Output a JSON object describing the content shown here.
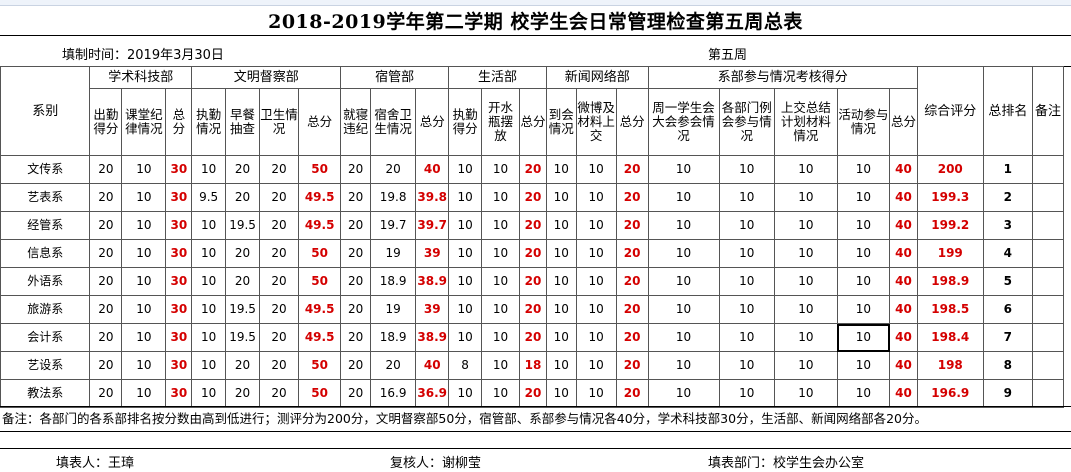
{
  "title": "2018-2019学年第二学期 校学生会日常管理检查第五周总表",
  "fill_time": "填制时间：2019年3月30日",
  "week": "第五周",
  "header": {
    "dept_col": "系别",
    "groups": [
      "学术科技部",
      "文明督察部",
      "宿管部",
      "生活部",
      "新闻网络部",
      "系部参与情况考核得分"
    ],
    "composite": "综合评分",
    "rank": "总排名",
    "remark": "备注",
    "sub": [
      "出勤得分",
      "课堂纪律情况",
      "总分",
      "执勤情况",
      "早餐抽查",
      "卫生情况",
      "总分",
      "就寝违纪",
      "宿舍卫生情况",
      "总分",
      "执勤得分",
      "开水瓶摆放",
      "总分",
      "到会情况",
      "微博及材料上交",
      "总分",
      "周一学生会大会参会情况",
      "各部门例会参与情况",
      "上交总结计划材料情况",
      "活动参与情况",
      "总分"
    ]
  },
  "rows": [
    {
      "dept": "文传系",
      "v": [
        "20",
        "10",
        "30",
        "10",
        "20",
        "20",
        "50",
        "20",
        "20",
        "40",
        "10",
        "10",
        "20",
        "10",
        "10",
        "20",
        "10",
        "10",
        "10",
        "10",
        "40",
        "200",
        "1"
      ]
    },
    {
      "dept": "艺表系",
      "v": [
        "20",
        "10",
        "30",
        "9.5",
        "20",
        "20",
        "49.5",
        "20",
        "19.8",
        "39.8",
        "10",
        "10",
        "20",
        "10",
        "10",
        "20",
        "10",
        "10",
        "10",
        "10",
        "40",
        "199.3",
        "2"
      ]
    },
    {
      "dept": "经管系",
      "v": [
        "20",
        "10",
        "30",
        "10",
        "19.5",
        "20",
        "49.5",
        "20",
        "19.7",
        "39.7",
        "10",
        "10",
        "20",
        "10",
        "10",
        "20",
        "10",
        "10",
        "10",
        "10",
        "40",
        "199.2",
        "3"
      ]
    },
    {
      "dept": "信息系",
      "v": [
        "20",
        "10",
        "30",
        "10",
        "20",
        "20",
        "50",
        "20",
        "19",
        "39",
        "10",
        "10",
        "20",
        "10",
        "10",
        "20",
        "10",
        "10",
        "10",
        "10",
        "40",
        "199",
        "4"
      ]
    },
    {
      "dept": "外语系",
      "v": [
        "20",
        "10",
        "30",
        "10",
        "20",
        "20",
        "50",
        "20",
        "18.9",
        "38.9",
        "10",
        "10",
        "20",
        "10",
        "10",
        "20",
        "10",
        "10",
        "10",
        "10",
        "40",
        "198.9",
        "5"
      ]
    },
    {
      "dept": "旅游系",
      "v": [
        "20",
        "10",
        "30",
        "10",
        "19.5",
        "20",
        "49.5",
        "20",
        "19",
        "39",
        "10",
        "10",
        "20",
        "10",
        "10",
        "20",
        "10",
        "10",
        "10",
        "10",
        "40",
        "198.5",
        "6"
      ]
    },
    {
      "dept": "会计系",
      "v": [
        "20",
        "10",
        "30",
        "10",
        "19.5",
        "20",
        "49.5",
        "20",
        "18.9",
        "38.9",
        "10",
        "10",
        "20",
        "10",
        "10",
        "20",
        "10",
        "10",
        "10",
        "10",
        "40",
        "198.4",
        "7"
      ]
    },
    {
      "dept": "艺设系",
      "v": [
        "20",
        "10",
        "30",
        "10",
        "20",
        "20",
        "50",
        "20",
        "20",
        "40",
        "8",
        "10",
        "18",
        "10",
        "10",
        "20",
        "10",
        "10",
        "10",
        "10",
        "40",
        "198",
        "8"
      ]
    },
    {
      "dept": "教法系",
      "v": [
        "20",
        "10",
        "30",
        "10",
        "20",
        "20",
        "50",
        "20",
        "16.9",
        "36.9",
        "10",
        "10",
        "20",
        "10",
        "10",
        "20",
        "10",
        "10",
        "10",
        "10",
        "40",
        "196.9",
        "9"
      ]
    }
  ],
  "note": "备注：各部门的各系部排名按分数由高到低进行；测评分为200分，文明督察部50分，宿管部、系部参与情况各40分，学术科技部30分，生活部、新闻网络部各20分。",
  "signatures": {
    "preparer": "填表人：王璋",
    "reviewer": "复核人：谢柳莹",
    "department": "填表部门：校学生会办公室"
  },
  "colors": {
    "highlight": "#d40000"
  }
}
